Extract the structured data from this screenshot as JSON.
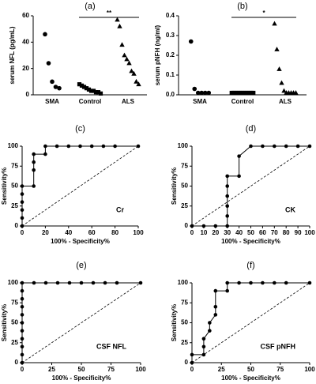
{
  "chart_data": [
    {
      "type": "dotplot",
      "title": "(a)",
      "y_label": "serum NFL (pg/mL)",
      "categories": [
        "SMA",
        "Control",
        "ALS"
      ],
      "markers": [
        "circle",
        "square",
        "triangle"
      ],
      "values": [
        [
          46,
          24,
          10,
          6,
          5
        ],
        [
          8,
          7,
          6,
          5,
          4,
          3,
          3,
          2,
          2,
          1
        ],
        [
          57,
          52,
          38,
          30,
          27,
          24,
          18,
          16,
          10,
          8
        ]
      ],
      "ylim": [
        0,
        60
      ],
      "yticks": [
        0,
        20,
        40,
        60
      ],
      "significance": "**"
    },
    {
      "type": "dotplot",
      "title": "(b)",
      "y_label": "serum pNFH (ng/ml)",
      "categories": [
        "SMA",
        "Control",
        "ALS"
      ],
      "markers": [
        "circle",
        "square",
        "triangle"
      ],
      "values": [
        [
          0.27,
          0.03,
          0.01,
          0.01,
          0.01,
          0.01
        ],
        [
          0.01,
          0.01,
          0.01,
          0.01,
          0.01,
          0.01,
          0.01,
          0.01,
          0.01,
          0.01,
          0.01,
          0.01
        ],
        [
          0.36,
          0.23,
          0.13,
          0.06,
          0.02,
          0.01,
          0.01,
          0.01,
          0.01,
          0.01
        ]
      ],
      "ylim": [
        0,
        0.4
      ],
      "yticks": [
        {
          "value": 0,
          "label": "0.0"
        },
        {
          "value": 0.1,
          "label": "0.1"
        },
        {
          "value": 0.2,
          "label": "0.2"
        },
        {
          "value": 0.3,
          "label": "0.3"
        },
        {
          "value": 0.4,
          "label": "0.4"
        }
      ],
      "significance": "*"
    },
    {
      "type": "roc",
      "title": "(c)",
      "label": "Cr",
      "x_label": "100% - Specificity%",
      "y_label": "Sensitivity%",
      "x": [
        0,
        0,
        0,
        0,
        0,
        0,
        10,
        10,
        10,
        10,
        20,
        20,
        30,
        40,
        50,
        60,
        70,
        80,
        100
      ],
      "values": [
        0,
        10,
        20,
        30,
        40,
        50,
        50,
        70,
        80,
        90,
        90,
        100,
        100,
        100,
        100,
        100,
        100,
        100,
        100
      ],
      "xlim": [
        0,
        100
      ],
      "ylim": [
        0,
        100
      ],
      "xticks": [
        0,
        20,
        40,
        60,
        80,
        100
      ],
      "yticks": [
        0,
        25,
        50,
        75,
        100
      ]
    },
    {
      "type": "roc",
      "title": "(d)",
      "label": "CK",
      "x_label": "100% - Specificity%",
      "y_label": "Sensitivity%",
      "x": [
        0,
        10,
        20,
        30,
        30,
        30,
        30,
        30,
        30,
        40,
        40,
        50,
        60,
        70,
        80,
        90,
        100
      ],
      "values": [
        0,
        0,
        0,
        0,
        12.5,
        25,
        37.5,
        50,
        62.5,
        62.5,
        87.5,
        100,
        100,
        100,
        100,
        100,
        100
      ],
      "xlim": [
        0,
        100
      ],
      "ylim": [
        0,
        100
      ],
      "xticks": [
        0,
        10,
        20,
        30,
        40,
        50,
        60,
        70,
        80,
        90,
        100
      ],
      "yticks": [
        0,
        25,
        50,
        75,
        100
      ]
    },
    {
      "type": "roc",
      "title": "(e)",
      "label": "CSF NFL",
      "x_label": "100% - Specificity%",
      "y_label": "Sensitivity%",
      "x": [
        0,
        0,
        0,
        0,
        0,
        0,
        0,
        0,
        0,
        0,
        0,
        10,
        20,
        30,
        40,
        50,
        60,
        70,
        80,
        100
      ],
      "values": [
        0,
        10,
        20,
        30,
        40,
        50,
        60,
        70,
        80,
        90,
        100,
        100,
        100,
        100,
        100,
        100,
        100,
        100,
        100,
        100
      ],
      "xlim": [
        0,
        100
      ],
      "ylim": [
        0,
        100
      ],
      "xticks": [
        0,
        25,
        50,
        75,
        100
      ],
      "yticks": [
        0,
        25,
        50,
        75,
        100
      ]
    },
    {
      "type": "roc",
      "title": "(f)",
      "label": "CSF pNFH",
      "x_label": "100% - Specificity%",
      "y_label": "Sensitivity%",
      "x": [
        0,
        0,
        10,
        10,
        10,
        15,
        15,
        20,
        20,
        20,
        30,
        30,
        40,
        50,
        60,
        70,
        80,
        100
      ],
      "values": [
        0,
        10,
        10,
        20,
        30,
        40,
        50,
        60,
        70,
        90,
        90,
        100,
        100,
        100,
        100,
        100,
        100,
        100
      ],
      "xlim": [
        0,
        100
      ],
      "ylim": [
        0,
        100
      ],
      "xticks": [
        0,
        25,
        50,
        75,
        100
      ],
      "yticks": [
        0,
        25,
        50,
        75,
        100
      ]
    }
  ]
}
